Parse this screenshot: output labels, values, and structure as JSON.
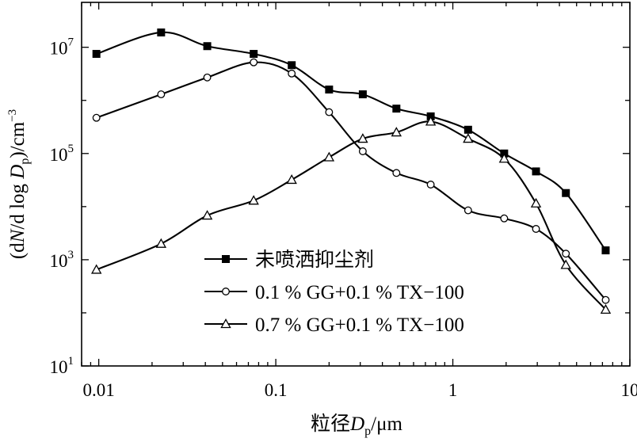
{
  "chart_data": {
    "type": "line",
    "xscale": "log",
    "yscale": "log",
    "xlim": [
      0.008,
      10
    ],
    "ylim": [
      10,
      70000000
    ],
    "xticks": [
      {
        "value": 0.01,
        "label": "0.01"
      },
      {
        "value": 0.1,
        "label": "0.1"
      },
      {
        "value": 1,
        "label": "1"
      },
      {
        "value": 10,
        "label": "10"
      }
    ],
    "yticks": [
      {
        "value": 10,
        "base": "10",
        "exp": "1"
      },
      {
        "value": 1000,
        "base": "10",
        "exp": "3"
      },
      {
        "value": 100000,
        "base": "10",
        "exp": "5"
      },
      {
        "value": 10000000,
        "base": "10",
        "exp": "7"
      }
    ],
    "xlabel": {
      "main": "粒径",
      "var": "D",
      "sub": "p",
      "unit": "/μm"
    },
    "ylabel": {
      "pre": "(d",
      "var1": "N",
      "mid": "/d log ",
      "var2": "D",
      "sub": "p",
      "post": ")/cm",
      "sup": "−3"
    },
    "legend_position": "bottom-center",
    "series": [
      {
        "name": "未喷洒抑尘剂",
        "marker": "filled-square",
        "x": [
          0.0097,
          0.0225,
          0.041,
          0.075,
          0.123,
          0.2,
          0.31,
          0.48,
          0.75,
          1.22,
          1.95,
          2.95,
          4.35,
          7.3
        ],
        "y": [
          7500000,
          19000000,
          10500000,
          7500000,
          4600000,
          1600000,
          1300000,
          700000,
          500000,
          280000,
          100000,
          46000,
          18000,
          1500
        ]
      },
      {
        "name": "0.1 % GG+0.1 % TX−100",
        "marker": "open-circle",
        "x": [
          0.0097,
          0.0225,
          0.041,
          0.075,
          0.123,
          0.2,
          0.31,
          0.48,
          0.75,
          1.22,
          1.95,
          2.95,
          4.35,
          7.3
        ],
        "y": [
          470000,
          1300000,
          2700000,
          5200000,
          3200000,
          600000,
          110000,
          43000,
          26000,
          8500,
          6000,
          3800,
          1300,
          175
        ]
      },
      {
        "name": "0.7 % GG+0.1 % TX−100",
        "marker": "open-triangle",
        "x": [
          0.0097,
          0.0225,
          0.041,
          0.075,
          0.123,
          0.2,
          0.31,
          0.48,
          0.75,
          1.22,
          1.95,
          2.95,
          4.35,
          7.3
        ],
        "y": [
          650,
          2000,
          6800,
          13000,
          32000,
          85000,
          190000,
          250000,
          400000,
          190000,
          80000,
          11500,
          800,
          115
        ]
      }
    ]
  }
}
